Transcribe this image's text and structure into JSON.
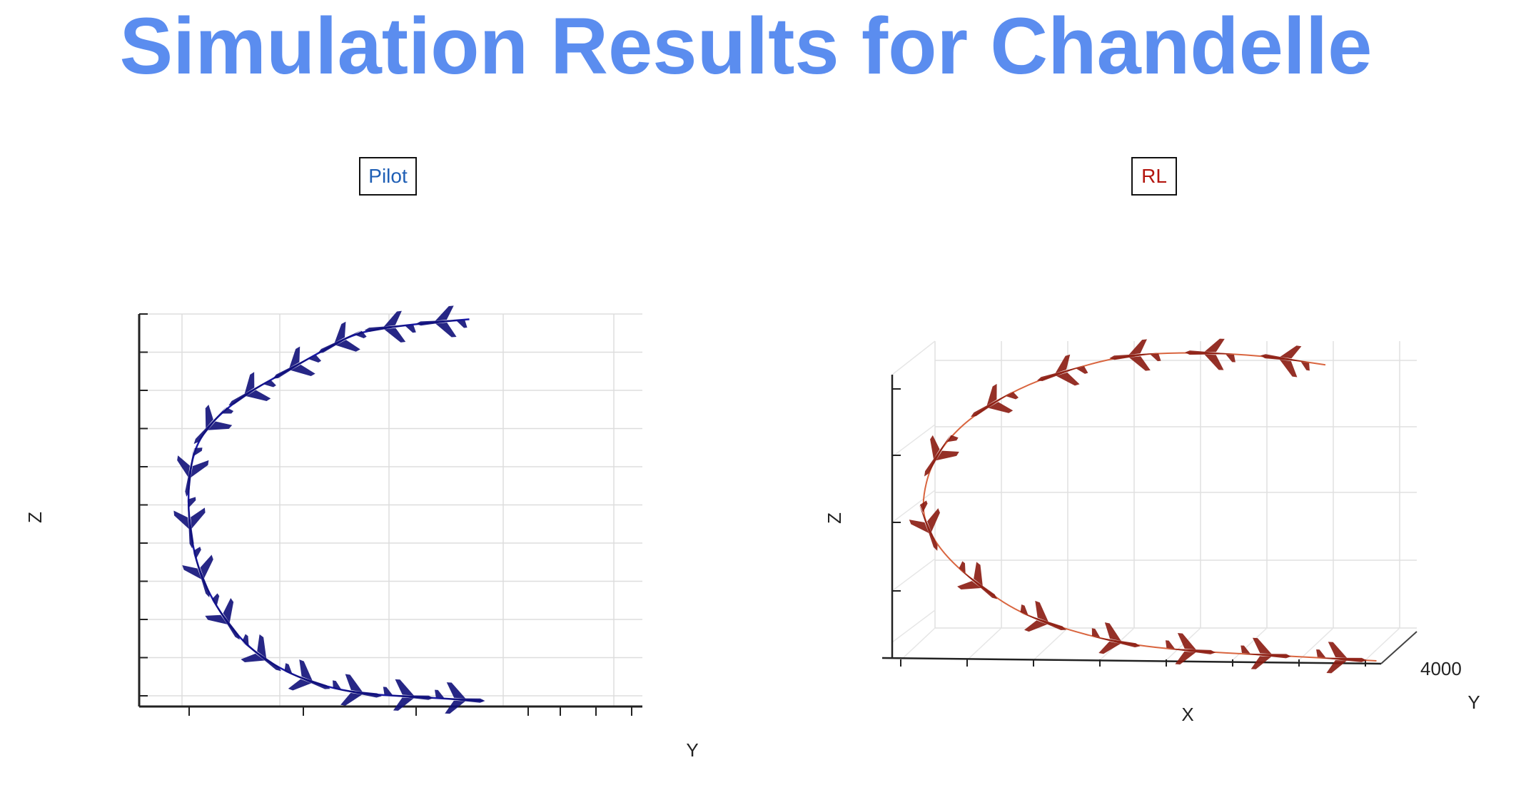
{
  "title": "Simulation Results for Chandelle",
  "colors": {
    "title": "#5b8def",
    "pilot": "#1a1aa8",
    "pilot_tag_text": "#1f5fb5",
    "rl": "#d9653f",
    "rl_tag_text": "#b3160f"
  },
  "panels": {
    "pilot": {
      "label": "Pilot",
      "z_axis_label": "Z",
      "y_axis_label": "Y"
    },
    "rl": {
      "label": "RL",
      "z_axis_label": "Z",
      "y_axis_label": "Y",
      "x_axis_label": "X",
      "y_tick_label": "4000"
    }
  },
  "chart_data": [
    {
      "type": "line",
      "name": "Pilot",
      "title": "Pilot",
      "xlabel": "Y",
      "ylabel": "Z",
      "grid": true,
      "x": [
        0.62,
        0.52,
        0.38,
        0.3,
        0.21,
        0.12,
        0.05,
        0.01,
        0.0,
        0.02,
        0.07,
        0.14,
        0.24,
        0.36,
        0.5,
        0.65
      ],
      "y": [
        0.99,
        0.98,
        0.96,
        0.91,
        0.85,
        0.79,
        0.72,
        0.64,
        0.5,
        0.35,
        0.23,
        0.13,
        0.06,
        0.02,
        0.01,
        0.0
      ],
      "aircraft_markers": 15
    },
    {
      "type": "line",
      "name": "RL",
      "title": "RL",
      "xlabel": "X",
      "ylabel": "Z",
      "zlabel": "Y",
      "grid": true,
      "x": [
        0.88,
        0.74,
        0.58,
        0.45,
        0.34,
        0.24,
        0.15,
        0.08,
        0.03,
        0.01,
        0.02,
        0.06,
        0.13,
        0.22,
        0.34,
        0.46,
        0.6,
        0.73,
        0.86,
        0.99
      ],
      "y": [
        0.93,
        0.96,
        0.97,
        0.96,
        0.92,
        0.87,
        0.8,
        0.72,
        0.62,
        0.5,
        0.42,
        0.33,
        0.24,
        0.15,
        0.09,
        0.05,
        0.03,
        0.02,
        0.01,
        0.0
      ],
      "aircraft_markers": 13
    }
  ]
}
